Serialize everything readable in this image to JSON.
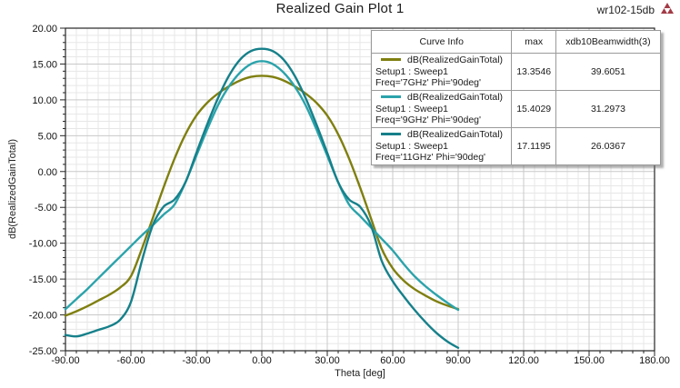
{
  "header": {
    "title": "Realized Gain Plot 1",
    "project_label": "wr102-15db",
    "logo_color": "#a23b46"
  },
  "chart_data": {
    "type": "line",
    "title": "Realized Gain Plot 1",
    "xlabel": "Theta [deg]",
    "ylabel": "dB(RealizedGainTotal)",
    "xlim": [
      -90,
      180
    ],
    "ylim": [
      -25,
      20
    ],
    "x_major_step": 30,
    "x_minor_step": 5,
    "y_major_step": 5,
    "y_minor_step": 1,
    "grid": true,
    "legend_position": "top-right",
    "x": [
      -90,
      -85,
      -80,
      -75,
      -70,
      -65,
      -60,
      -55,
      -50,
      -45,
      -40,
      -35,
      -30,
      -25,
      -20,
      -15,
      -10,
      -5,
      0,
      5,
      10,
      15,
      20,
      25,
      30,
      35,
      40,
      45,
      50,
      55,
      60,
      65,
      70,
      75,
      80,
      85,
      90
    ],
    "series": [
      {
        "name": "dB(RealizedGainTotal) Setup1 : Sweep1 Freq='7GHz' Phi='90deg'",
        "color": "#7f7f10",
        "max": 13.3546,
        "values": [
          -20.1,
          -19.5,
          -18.8,
          -18.0,
          -17.2,
          -16.2,
          -14.6,
          -10.8,
          -6.5,
          -2.2,
          1.8,
          5.2,
          7.8,
          9.6,
          10.9,
          11.9,
          12.7,
          13.2,
          13.3546,
          13.2,
          12.7,
          11.9,
          10.9,
          9.6,
          7.8,
          5.2,
          1.8,
          -2.2,
          -6.5,
          -10.8,
          -13.5,
          -15.2,
          -16.4,
          -17.3,
          -18.1,
          -18.7,
          -19.2
        ]
      },
      {
        "name": "dB(RealizedGainTotal) Setup1 : Sweep1 Freq='9GHz' Phi='90deg'",
        "color": "#2ba3ab",
        "max": 15.4029,
        "values": [
          -19.2,
          -17.8,
          -16.4,
          -14.9,
          -13.4,
          -11.9,
          -10.4,
          -8.9,
          -7.5,
          -6.0,
          -4.6,
          -1.5,
          2.2,
          5.9,
          9.3,
          11.9,
          13.8,
          15.0,
          15.4029,
          15.0,
          13.8,
          11.9,
          9.3,
          5.9,
          2.2,
          -1.5,
          -4.6,
          -6.2,
          -7.8,
          -9.4,
          -11.0,
          -12.9,
          -14.6,
          -16.0,
          -17.2,
          -18.3,
          -19.3
        ]
      },
      {
        "name": "dB(RealizedGainTotal) Setup1 : Sweep1 Freq='11GHz' Phi='90deg'",
        "color": "#16808a",
        "max": 17.1195,
        "values": [
          -22.8,
          -23.0,
          -22.6,
          -22.1,
          -21.6,
          -20.7,
          -18.2,
          -12.5,
          -7.5,
          -4.9,
          -3.9,
          -1.5,
          2.6,
          6.6,
          10.3,
          13.4,
          15.6,
          16.8,
          17.1195,
          16.8,
          15.6,
          13.4,
          10.3,
          6.6,
          2.6,
          -1.5,
          -3.9,
          -4.9,
          -7.5,
          -12.5,
          -15.3,
          -17.4,
          -19.3,
          -21.0,
          -22.5,
          -23.7,
          -24.6
        ]
      }
    ]
  },
  "legend": {
    "headers": [
      "Curve Info",
      "max",
      "xdb10Beamwidth(3)"
    ],
    "rows": [
      {
        "swatch_color": "#7f7f10",
        "curve_label": "dB(RealizedGainTotal)",
        "setup": "Setup1 : Sweep1",
        "freq": "Freq='7GHz' Phi='90deg'",
        "max": "13.3546",
        "beamwidth": "39.6051"
      },
      {
        "swatch_color": "#2ba3ab",
        "curve_label": "dB(RealizedGainTotal)",
        "setup": "Setup1 : Sweep1",
        "freq": "Freq='9GHz' Phi='90deg'",
        "max": "15.4029",
        "beamwidth": "31.2973"
      },
      {
        "swatch_color": "#16808a",
        "curve_label": "dB(RealizedGainTotal)",
        "setup": "Setup1 : Sweep1",
        "freq": "Freq='11GHz' Phi='90deg'",
        "max": "17.1195",
        "beamwidth": "26.0367"
      }
    ]
  }
}
